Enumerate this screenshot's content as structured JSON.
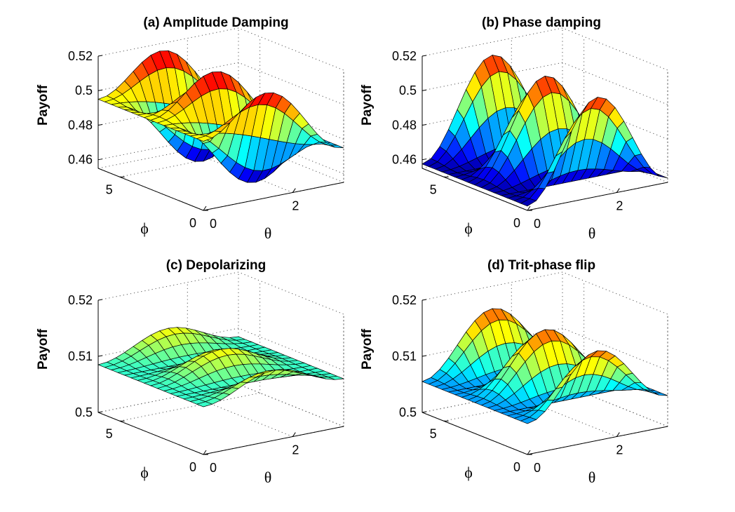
{
  "chart_data": [
    {
      "type": "surface",
      "title": "(a) Amplitude Damping",
      "xlabel": "θ",
      "ylabel": "ϕ",
      "zlabel": "Payoff",
      "x_range": [
        0,
        3.14
      ],
      "y_range": [
        0,
        6.28
      ],
      "zlim": [
        0.455,
        0.52
      ],
      "x_ticks": [
        "0",
        "2"
      ],
      "y_ticks": [
        "0",
        "5"
      ],
      "z_ticks": [
        "0.46",
        "0.48",
        "0.5",
        "0.52"
      ],
      "z_tick_values": [
        0.46,
        0.48,
        0.5,
        0.52
      ],
      "grid": true,
      "surface": {
        "base": 0.485,
        "a": 0.03,
        "b": 0.028,
        "c": 0.01
      }
    },
    {
      "type": "surface",
      "title": "(b) Phase damping",
      "xlabel": "θ",
      "ylabel": "ϕ",
      "zlabel": "Payoff",
      "x_range": [
        0,
        3.14
      ],
      "y_range": [
        0,
        6.28
      ],
      "zlim": [
        0.455,
        0.52
      ],
      "x_ticks": [
        "0",
        "2"
      ],
      "y_ticks": [
        "0",
        "5"
      ],
      "z_ticks": [
        "0.46",
        "0.48",
        "0.5",
        "0.52"
      ],
      "z_tick_values": [
        0.46,
        0.48,
        0.5,
        0.52
      ],
      "grid": true,
      "surface": {
        "base": 0.4575,
        "a": 0.055,
        "b": 0.0,
        "c": 0.0
      }
    },
    {
      "type": "surface",
      "title": "(c) Depolarizing",
      "xlabel": "θ",
      "ylabel": "ϕ",
      "zlabel": "Payoff",
      "x_range": [
        0,
        3.14
      ],
      "y_range": [
        0,
        6.28
      ],
      "zlim": [
        0.5,
        0.52
      ],
      "x_ticks": [
        "0",
        "2"
      ],
      "y_ticks": [
        "0",
        "5"
      ],
      "z_ticks": [
        "0.5",
        "0.51",
        "0.52"
      ],
      "z_tick_values": [
        0.5,
        0.51,
        0.52
      ],
      "grid": true,
      "surface": {
        "base": 0.5085,
        "a": 0.004,
        "b": 0.0,
        "c": 0.0
      }
    },
    {
      "type": "surface",
      "title": "(d) Trit-phase flip",
      "xlabel": "θ",
      "ylabel": "ϕ",
      "zlabel": "Payoff",
      "x_range": [
        0,
        3.14
      ],
      "y_range": [
        0,
        6.28
      ],
      "zlim": [
        0.5,
        0.52
      ],
      "x_ticks": [
        "0",
        "2"
      ],
      "y_ticks": [
        "0",
        "5"
      ],
      "z_ticks": [
        "0.5",
        "0.51",
        "0.52"
      ],
      "z_tick_values": [
        0.5,
        0.51,
        0.52
      ],
      "grid": true,
      "surface": {
        "base": 0.5055,
        "a": 0.0105,
        "b": 0.0,
        "c": 0.0
      }
    }
  ]
}
